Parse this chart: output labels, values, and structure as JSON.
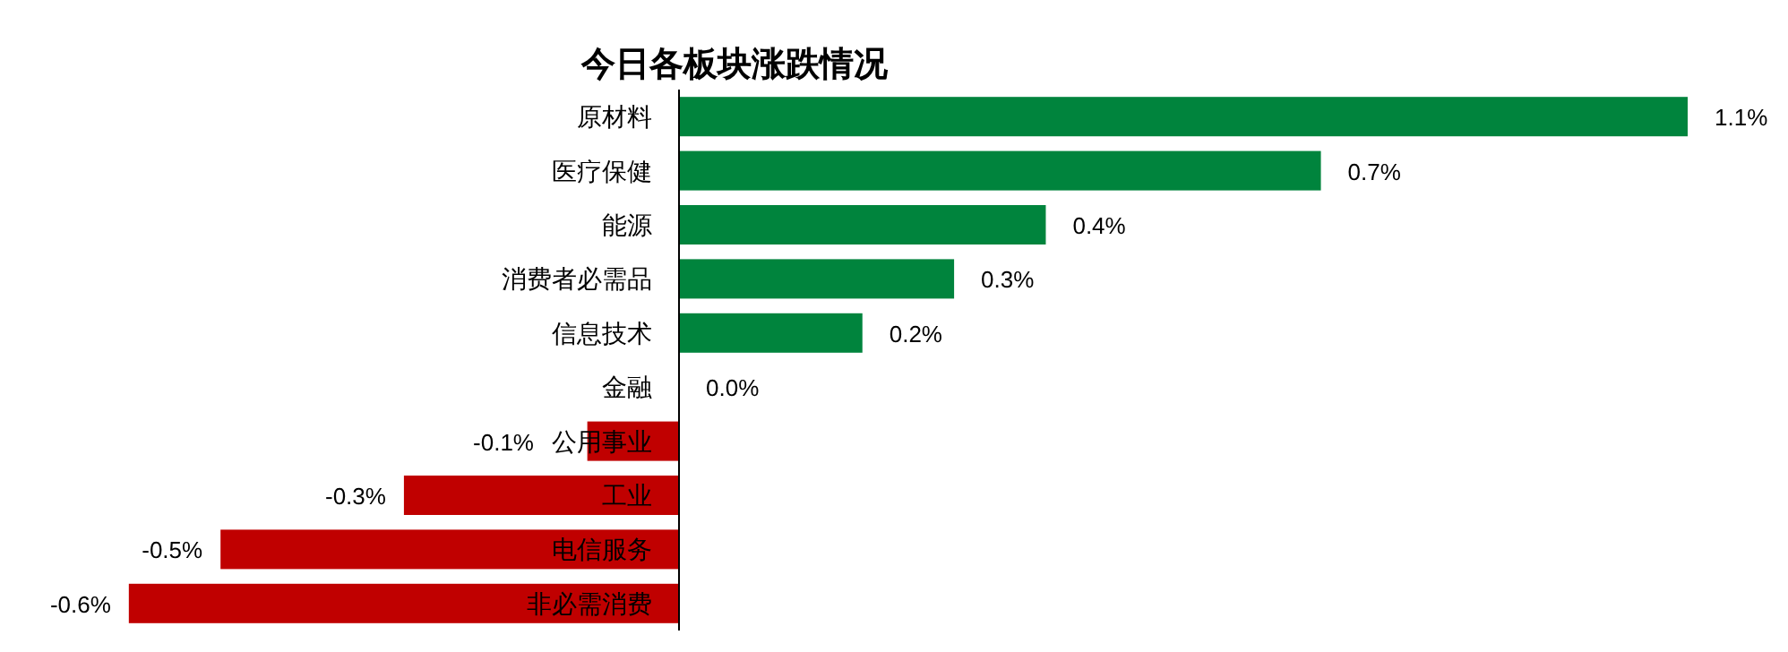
{
  "chart_data": {
    "type": "bar",
    "orientation": "horizontal",
    "title": "今日各板块涨跌情况",
    "categories": [
      "原材料",
      "医疗保健",
      "能源",
      "消费者必需品",
      "信息技术",
      "金融",
      "公用事业",
      "工业",
      "电信服务",
      "非必需消费"
    ],
    "values": [
      1.1,
      0.7,
      0.4,
      0.3,
      0.2,
      0.0,
      -0.1,
      -0.3,
      -0.5,
      -0.6
    ],
    "colors": [
      "#00843d",
      "#00843d",
      "#00843d",
      "#00843d",
      "#00843d",
      "#00843d",
      "#c00000",
      "#c00000",
      "#c00000",
      "#c00000"
    ],
    "value_labels": [
      "1.1%",
      "0.7%",
      "0.4%",
      "0.3%",
      "0.2%",
      "0.0%",
      "-0.1%",
      "-0.3%",
      "-0.5%",
      "-0.6%"
    ]
  }
}
